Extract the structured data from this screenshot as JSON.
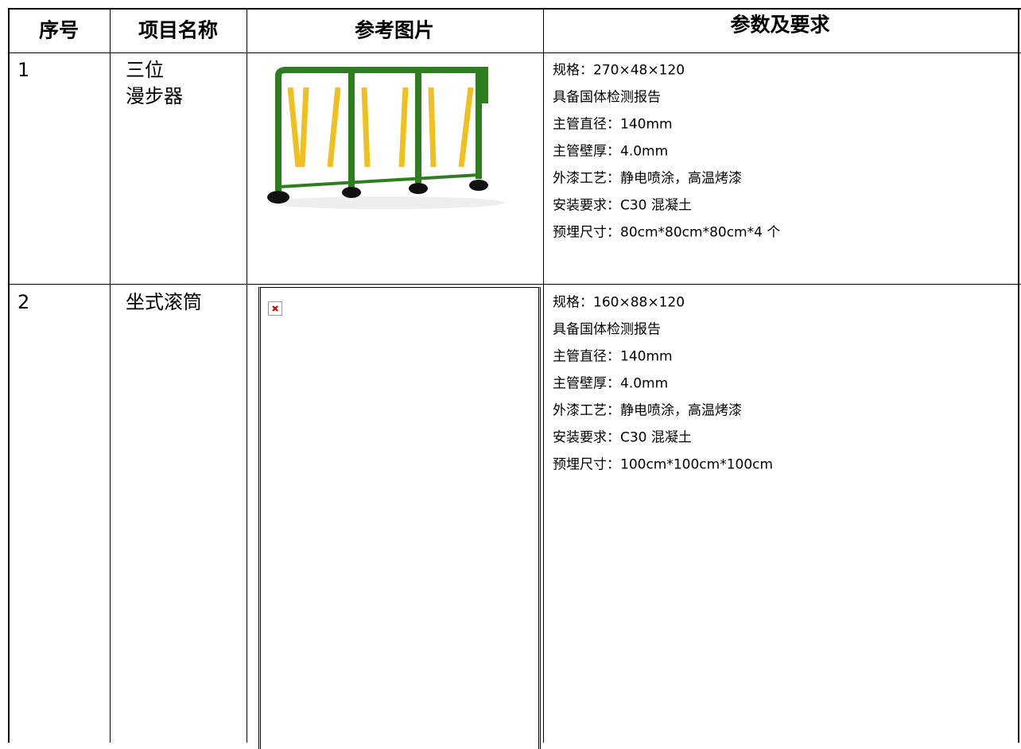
{
  "table": {
    "header": [
      "序号",
      "项目名称",
      "参考图片",
      "参数及要求"
    ],
    "rows": [
      {
        "index": "1",
        "name": [
          "三位",
          "漫步器"
        ],
        "specs": [
          "规格：270×48×120",
          "具备国体检测报告",
          "主管直径：140mm",
          "主管壁厚：4.0mm",
          "外漆工艺：静电喷涂，高温烤漆",
          "安装要求：C30 混凝土",
          "预埋尺寸：80cm*80cm*80cm*4 个"
        ]
      },
      {
        "index": "2",
        "name": [
          "坐式滚筒"
        ],
        "specs": [
          "规格：160×88×120",
          "具备国体检测报告",
          "主管直径：140mm",
          "主管壁厚：4.0mm",
          "外漆工艺：静电喷涂，高温烤漆",
          "安装要求：C30 混凝土",
          "预埋尺寸：100cm*100cm*100cm"
        ]
      }
    ]
  }
}
